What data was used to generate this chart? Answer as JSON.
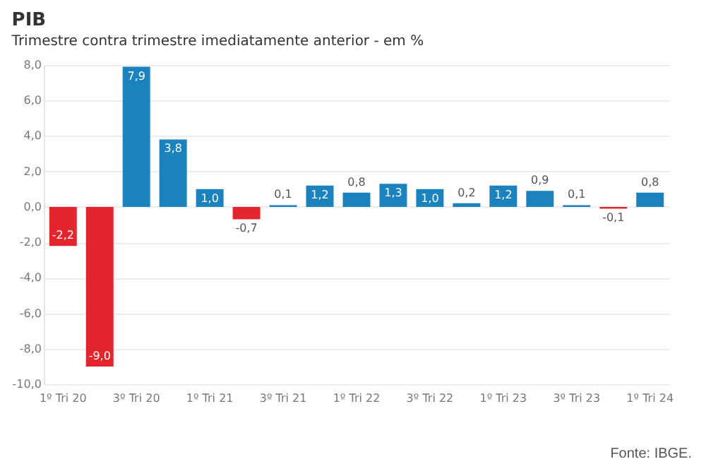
{
  "chart_data": {
    "type": "bar",
    "title": "PIB",
    "subtitle": "Trimestre contra trimestre imediatamente anterior - em %",
    "categories": [
      "1º Tri 20",
      null,
      "3º Tri 20",
      null,
      "1º Tri 21",
      null,
      "3º Tri 21",
      null,
      "1º Tri 22",
      null,
      "3º Tri 22",
      null,
      "1º Tri 23",
      null,
      "3º Tri 23",
      null,
      "1º Tri 24"
    ],
    "values": [
      -2.2,
      -9.0,
      7.9,
      3.8,
      1.0,
      -0.7,
      0.1,
      1.2,
      0.8,
      1.3,
      1.0,
      0.2,
      1.2,
      0.9,
      0.1,
      -0.1,
      0.8
    ],
    "colors": [
      "#e3262d",
      "#e3262d",
      "#1b82be",
      "#1b82be",
      "#1b82be",
      "#e3262d",
      "#1b82be",
      "#1b82be",
      "#1b82be",
      "#1b82be",
      "#1b82be",
      "#1b82be",
      "#1b82be",
      "#1b82be",
      "#1b82be",
      "#e3262d",
      "#1b82be"
    ],
    "value_labels": [
      "-2,2",
      "-9,0",
      "7,9",
      "3,8",
      "1,0",
      "-0,7",
      "0,1",
      "1,2",
      "0,8",
      "1,3",
      "1,0",
      "0,2",
      "1,2",
      "0,9",
      "0,1",
      "-0,1",
      "0,8"
    ],
    "ylim": [
      -10.0,
      8.0
    ],
    "yticks": [
      {
        "value": -10,
        "label": "-10,0"
      },
      {
        "value": -8,
        "label": "-8,0"
      },
      {
        "value": -6,
        "label": "-6,0"
      },
      {
        "value": -4,
        "label": "-4,0"
      },
      {
        "value": -2,
        "label": "-2,0"
      },
      {
        "value": 0,
        "label": "0,0"
      },
      {
        "value": 2,
        "label": "2,0"
      },
      {
        "value": 4,
        "label": "4,0"
      },
      {
        "value": 6,
        "label": "6,0"
      },
      {
        "value": 8,
        "label": "8,0"
      }
    ],
    "grid": "y",
    "annotations": [
      "Fonte: IBGE."
    ]
  }
}
